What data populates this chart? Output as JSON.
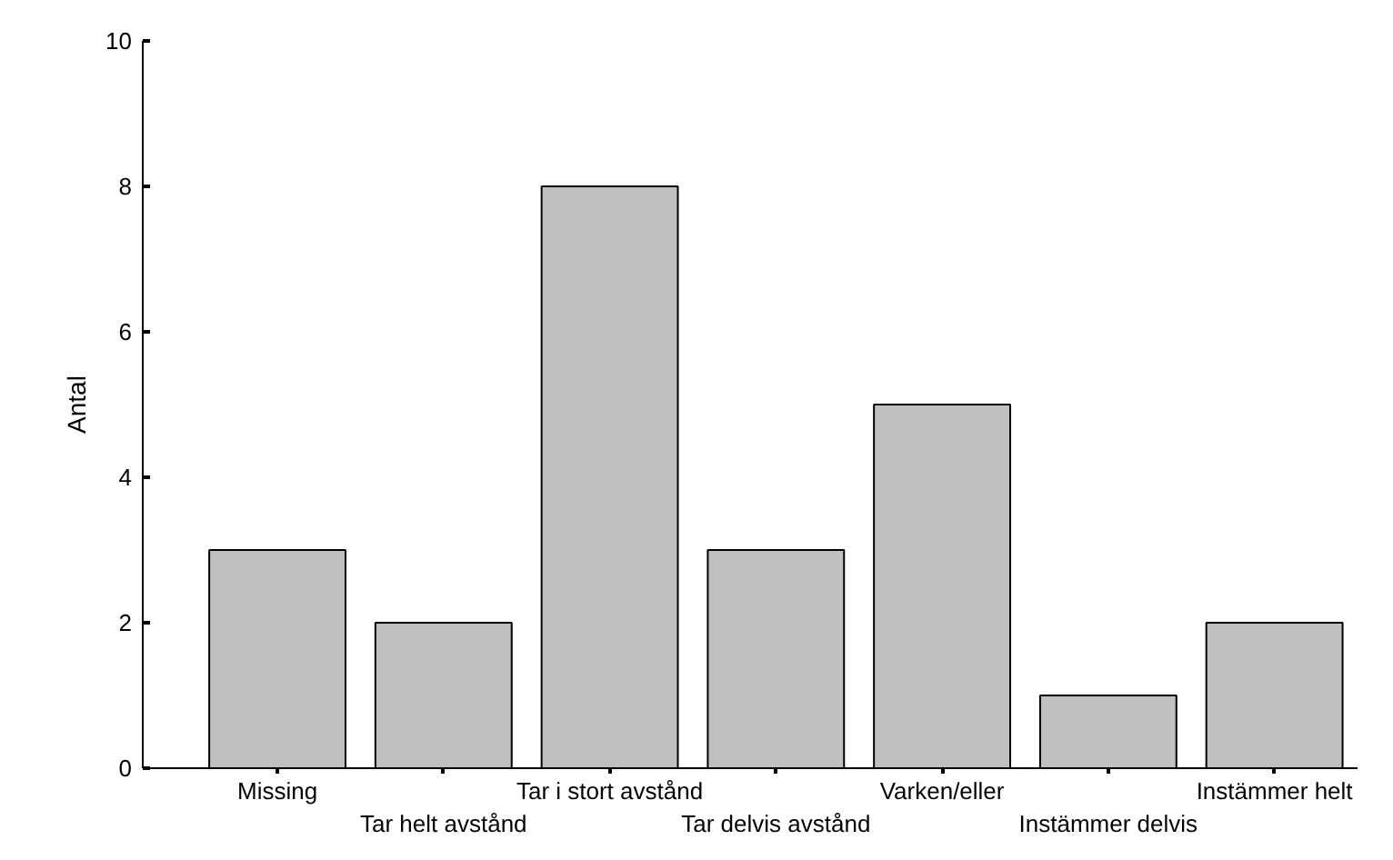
{
  "chart_data": {
    "type": "bar",
    "ylabel": "Antal",
    "categories": [
      "Missing",
      "Tar helt avstånd",
      "Tar i stort avstånd",
      "Tar delvis avstånd",
      "Varken/eller",
      "Instämmer delvis",
      "Instämmer helt"
    ],
    "values": [
      3,
      2,
      8,
      3,
      5,
      1,
      2
    ],
    "color": "#c0c0c0",
    "ylim": [
      0,
      10
    ],
    "yticks": [
      0,
      2,
      4,
      6,
      8,
      10
    ],
    "grid": false
  }
}
